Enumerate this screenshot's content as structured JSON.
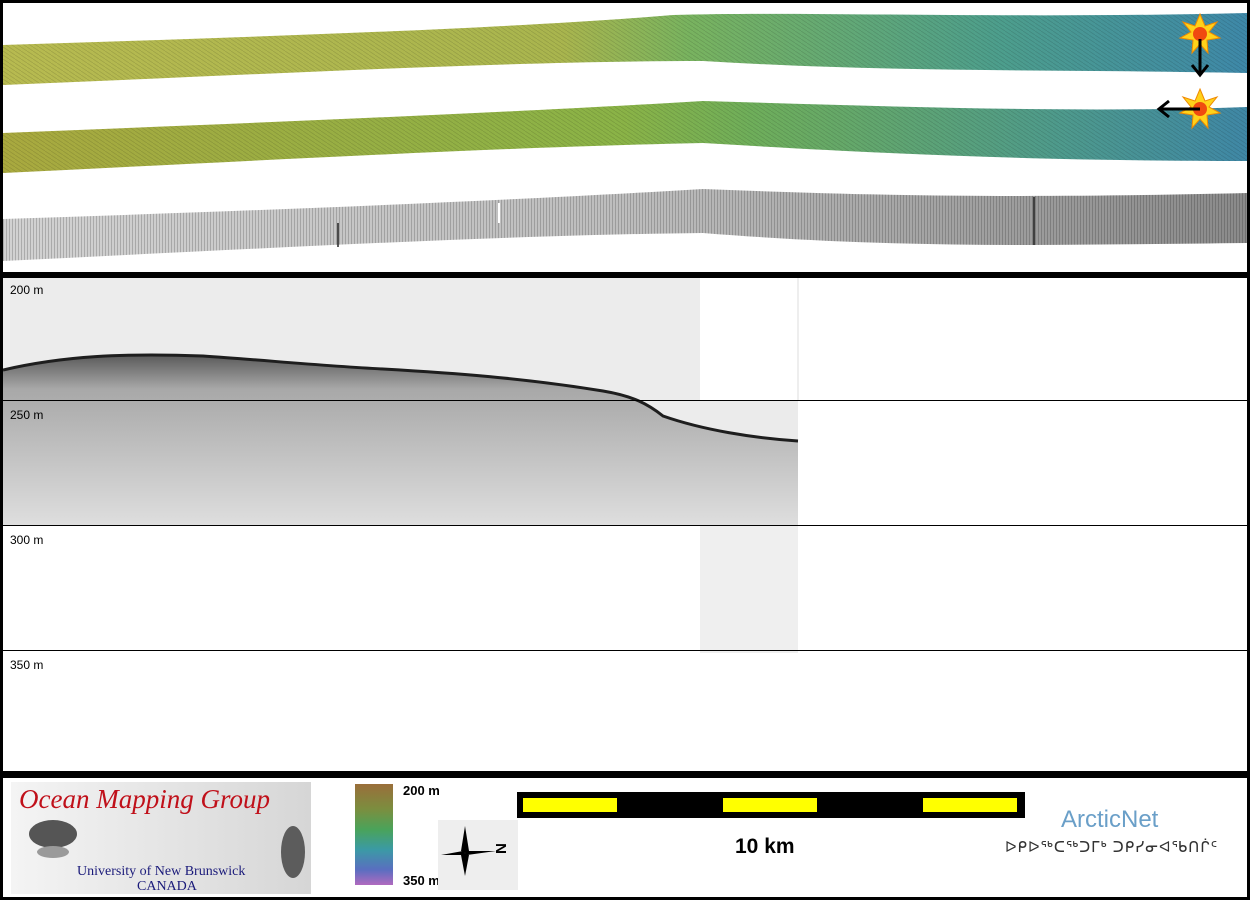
{
  "depth_ticks": [
    {
      "label": "200 m"
    },
    {
      "label": "250 m"
    },
    {
      "label": "300 m"
    },
    {
      "label": "350 m"
    }
  ],
  "legend": {
    "org_title": "Ocean Mapping Group",
    "org_university": "University of New Brunswick",
    "org_country": "CANADA",
    "colorbar_top": "200 m",
    "colorbar_bottom": "350 m",
    "north_letter": "N",
    "scale_text": "10 km",
    "partner_name": "ArcticNet",
    "partner_syllabics": "ᐅᑭᐅᖅᑕᖅᑐᒥᒃ ᑐᑭᓯᓂᐊᖃᑎᒌᑦ"
  },
  "colors": {
    "frame": "#000000",
    "swath_yellow": "#b6bb52",
    "swath_green": "#69b46a",
    "swath_blue": "#3f8ea7",
    "scale_yellow": "#ffff00",
    "title_red": "#c0101a",
    "partner_blue": "#6a9fc8"
  },
  "icons": [
    "sun-marker-icon",
    "down-arrow-icon",
    "left-arrow-icon",
    "north-arrow-icon"
  ]
}
